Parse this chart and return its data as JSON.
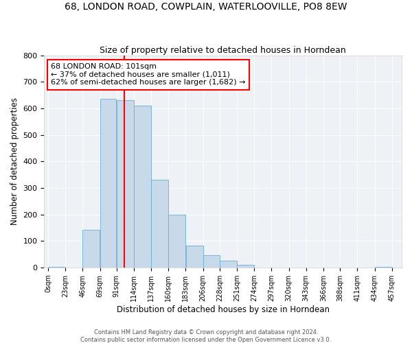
{
  "title": "68, LONDON ROAD, COWPLAIN, WATERLOOVILLE, PO8 8EW",
  "subtitle": "Size of property relative to detached houses in Horndean",
  "xlabel": "Distribution of detached houses by size in Horndean",
  "ylabel": "Number of detached properties",
  "bin_edges": [
    0,
    23,
    46,
    69,
    91,
    114,
    137,
    160,
    183,
    206,
    228,
    251,
    274,
    297,
    320,
    343,
    366,
    388,
    411,
    434,
    457
  ],
  "bin_labels": [
    "0sqm",
    "23sqm",
    "46sqm",
    "69sqm",
    "91sqm",
    "114sqm",
    "137sqm",
    "160sqm",
    "183sqm",
    "206sqm",
    "228sqm",
    "251sqm",
    "274sqm",
    "297sqm",
    "320sqm",
    "343sqm",
    "366sqm",
    "388sqm",
    "411sqm",
    "434sqm",
    "457sqm"
  ],
  "counts": [
    2,
    0,
    142,
    635,
    632,
    610,
    332,
    200,
    83,
    45,
    25,
    11,
    0,
    0,
    0,
    0,
    0,
    0,
    0,
    2
  ],
  "bar_color": "#c8daea",
  "bar_edgecolor": "#6aaed6",
  "property_value": 101,
  "vline_color": "red",
  "annotation_line1": "68 LONDON ROAD: 101sqm",
  "annotation_line2": "← 37% of detached houses are smaller (1,011)",
  "annotation_line3": "62% of semi-detached houses are larger (1,682) →",
  "annotation_box_edgecolor": "red",
  "ylim": [
    0,
    800
  ],
  "yticks": [
    0,
    100,
    200,
    300,
    400,
    500,
    600,
    700,
    800
  ],
  "footnote1": "Contains HM Land Registry data © Crown copyright and database right 2024.",
  "footnote2": "Contains public sector information licensed under the Open Government Licence v3.0.",
  "background_color": "#eef2f7",
  "title_fontsize": 10,
  "subtitle_fontsize": 9
}
